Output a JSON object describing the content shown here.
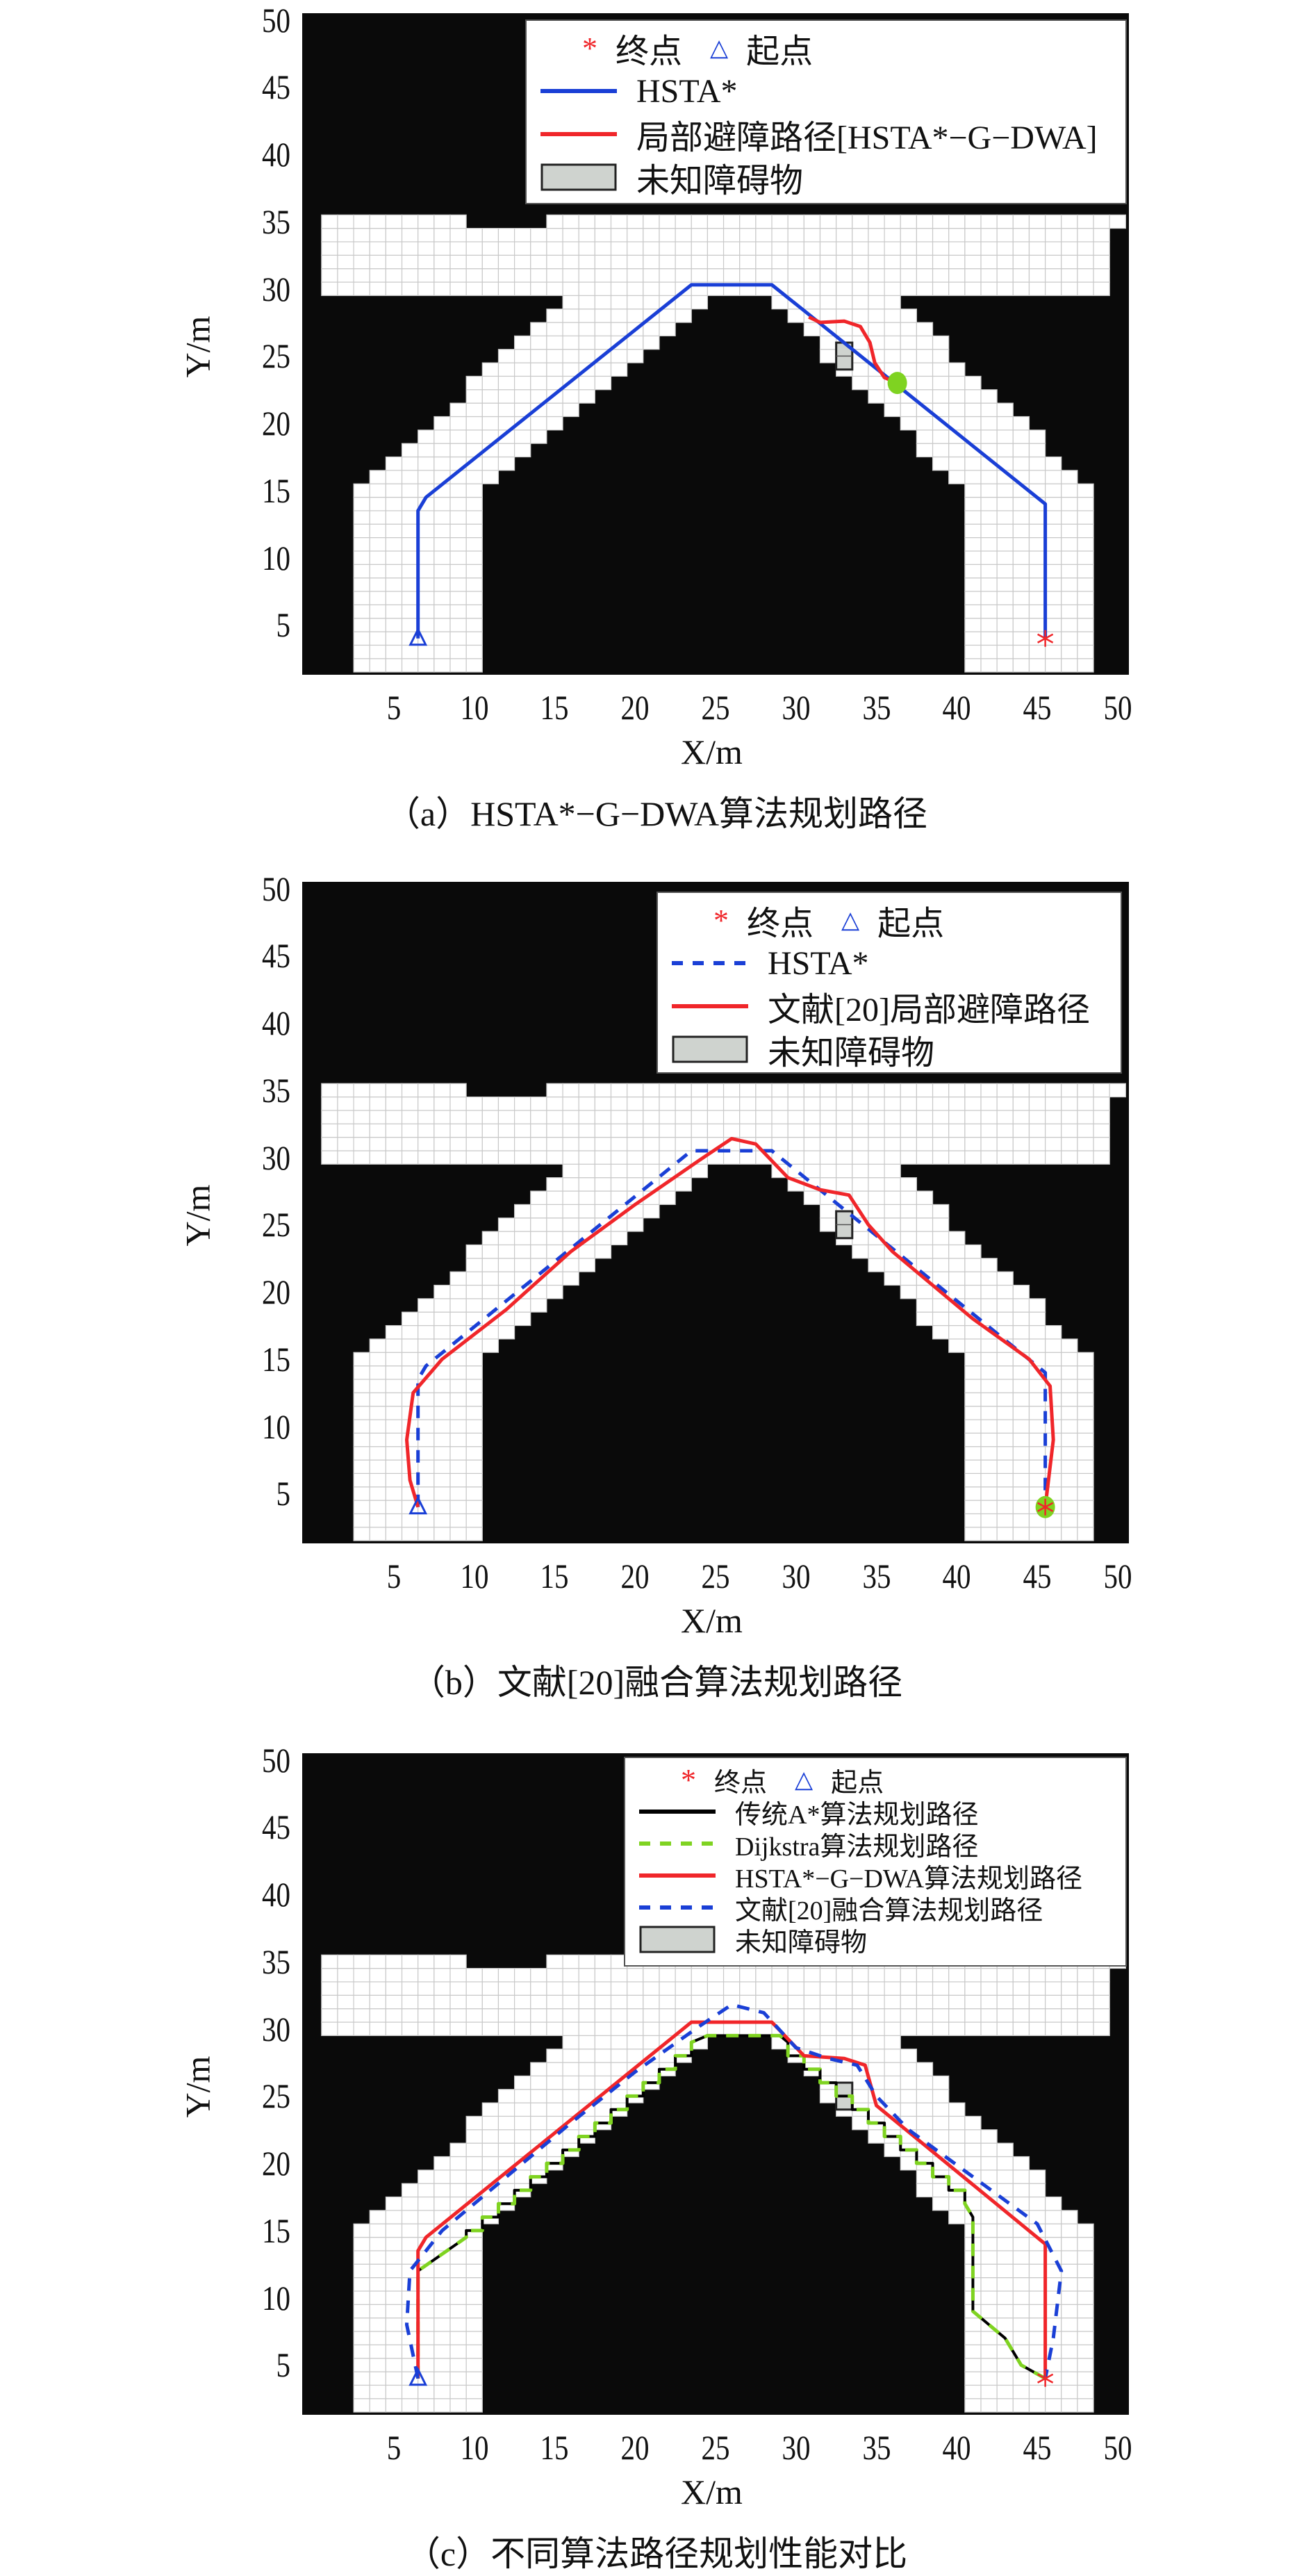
{
  "colors": {
    "obstacle_area": "#0a0a0a",
    "free_cell": "#ffffff",
    "grid_line": "#c9c9c9",
    "hsta": "#1a3fd6",
    "local": "#f0262a",
    "dijkstra": "#7fd321",
    "astar": "#000000",
    "unknown_obstacle": "#cfd3cf",
    "start": "#1a3fd6",
    "goal": "#f0262a"
  },
  "chart_data": [
    {
      "type": "line",
      "caption": "（a）HSTA*−G−DWA算法规划路径",
      "xlabel": "X/m",
      "ylabel": "Y/m",
      "xlim": [
        -0.7,
        50.7
      ],
      "ylim": [
        1.3,
        50.5
      ],
      "xticks": [
        "5",
        "10",
        "15",
        "20",
        "25",
        "30",
        "35",
        "40",
        "45",
        "50"
      ],
      "yticks": [
        "5",
        "10",
        "15",
        "20",
        "25",
        "30",
        "35",
        "40",
        "45",
        "50"
      ],
      "grid": true,
      "legend_placement": "top-right",
      "legend": [
        {
          "kind": "markers",
          "goal": "终点",
          "start": "起点"
        },
        {
          "kind": "line",
          "label": "HSTA*",
          "color": "#1a3fd6",
          "dash": false
        },
        {
          "kind": "line",
          "label": "局部避障路径[HSTA*−G−DWA]",
          "color": "#f0262a",
          "dash": false
        },
        {
          "kind": "box",
          "label": "未知障碍物"
        }
      ],
      "start": [
        6.5,
        4
      ],
      "goal": [
        45.5,
        4
      ],
      "unknown_obstacle": {
        "x": [
          32.5,
          33.5
        ],
        "y": [
          24,
          26
        ]
      },
      "robot_marker": [
        36.3,
        23
      ],
      "series": [
        {
          "name": "HSTA*",
          "color": "#1a3fd6",
          "dash": false,
          "points": [
            [
              6.5,
              4
            ],
            [
              6.5,
              13.5
            ],
            [
              7,
              14.5
            ],
            [
              23.5,
              30.3
            ],
            [
              28.5,
              30.3
            ],
            [
              45.5,
              14
            ],
            [
              45.5,
              4
            ]
          ]
        },
        {
          "name": "局部避障路径[HSTA*−G−DWA]",
          "color": "#f0262a",
          "dash": false,
          "points": [
            [
              30.8,
              27.9
            ],
            [
              31.5,
              27.5
            ],
            [
              33,
              27.6
            ],
            [
              34,
              27.2
            ],
            [
              34.6,
              26
            ],
            [
              34.9,
              24.5
            ],
            [
              35.5,
              23.4
            ],
            [
              36.3,
              23
            ]
          ]
        }
      ]
    },
    {
      "type": "line",
      "caption": "（b）文献[20]融合算法规划路径",
      "xlabel": "X/m",
      "ylabel": "Y/m",
      "xlim": [
        -0.7,
        50.7
      ],
      "ylim": [
        1.3,
        50.5
      ],
      "xticks": [
        "5",
        "10",
        "15",
        "20",
        "25",
        "30",
        "35",
        "40",
        "45",
        "50"
      ],
      "yticks": [
        "5",
        "10",
        "15",
        "20",
        "25",
        "30",
        "35",
        "40",
        "45",
        "50"
      ],
      "grid": true,
      "legend_placement": "top-right",
      "legend": [
        {
          "kind": "markers",
          "goal": "终点",
          "start": "起点"
        },
        {
          "kind": "line",
          "label": "HSTA*",
          "color": "#1a3fd6",
          "dash": true
        },
        {
          "kind": "line",
          "label": "文献[20]局部避障路径",
          "color": "#f0262a",
          "dash": false
        },
        {
          "kind": "box",
          "label": "未知障碍物"
        }
      ],
      "start": [
        6.5,
        4
      ],
      "goal": [
        45.5,
        4
      ],
      "unknown_obstacle": {
        "x": [
          32.5,
          33.5
        ],
        "y": [
          24,
          26
        ]
      },
      "robot_marker": [
        45.5,
        4
      ],
      "series": [
        {
          "name": "HSTA*",
          "color": "#1a3fd6",
          "dash": true,
          "points": [
            [
              6.5,
              4
            ],
            [
              6.5,
              13.5
            ],
            [
              7,
              14.5
            ],
            [
              23.5,
              30.5
            ],
            [
              28.5,
              30.5
            ],
            [
              45.5,
              14
            ],
            [
              45.5,
              4
            ]
          ]
        },
        {
          "name": "文献[20]局部避障路径",
          "color": "#f0262a",
          "dash": false,
          "points": [
            [
              6.5,
              4
            ],
            [
              6,
              6
            ],
            [
              5.8,
              9
            ],
            [
              6.2,
              12.5
            ],
            [
              8,
              15
            ],
            [
              12,
              18.7
            ],
            [
              16,
              23
            ],
            [
              20,
              26.5
            ],
            [
              24,
              29.8
            ],
            [
              26,
              31.4
            ],
            [
              27.5,
              31
            ],
            [
              29.5,
              28.5
            ],
            [
              31.5,
              27.6
            ],
            [
              33.3,
              27.2
            ],
            [
              34.5,
              25
            ],
            [
              36,
              23
            ],
            [
              38.5,
              20.5
            ],
            [
              41,
              18
            ],
            [
              44.5,
              15
            ],
            [
              45.8,
              13
            ],
            [
              46,
              9
            ],
            [
              45.5,
              4
            ]
          ]
        }
      ]
    },
    {
      "type": "line",
      "caption": "（c）不同算法路径规划性能对比",
      "xlabel": "X/m",
      "ylabel": "Y/m",
      "xlim": [
        -0.7,
        50.7
      ],
      "ylim": [
        1.3,
        50.5
      ],
      "xticks": [
        "5",
        "10",
        "15",
        "20",
        "25",
        "30",
        "35",
        "40",
        "45",
        "50"
      ],
      "yticks": [
        "5",
        "10",
        "15",
        "20",
        "25",
        "30",
        "35",
        "40",
        "45",
        "50"
      ],
      "grid": true,
      "legend_placement": "top-right",
      "legend": [
        {
          "kind": "markers",
          "goal": "终点",
          "start": "起点"
        },
        {
          "kind": "line",
          "label": "传统A*算法规划路径",
          "color": "#000000",
          "dash": false
        },
        {
          "kind": "line",
          "label": "Dijkstra算法规划路径",
          "color": "#7fd321",
          "dash": true
        },
        {
          "kind": "line",
          "label": "HSTA*−G−DWA算法规划路径",
          "color": "#f0262a",
          "dash": false
        },
        {
          "kind": "line",
          "label": "文献[20]融合算法规划路径",
          "color": "#1a3fd6",
          "dash": true
        },
        {
          "kind": "box",
          "label": "未知障碍物"
        }
      ],
      "start": [
        6.5,
        4
      ],
      "goal": [
        45.5,
        4
      ],
      "unknown_obstacle": {
        "x": [
          32.5,
          33.5
        ],
        "y": [
          24,
          26
        ]
      },
      "series": [
        {
          "name": "传统A*算法规划路径",
          "color": "#000000",
          "dash": false,
          "points": [
            [
              6.5,
              4
            ],
            [
              6.5,
              12
            ],
            [
              9.5,
              14.5
            ],
            [
              9.5,
              15
            ],
            [
              10.5,
              15
            ],
            [
              10.5,
              16
            ],
            [
              11.5,
              16
            ],
            [
              11.5,
              17
            ],
            [
              12.5,
              17
            ],
            [
              12.5,
              18
            ],
            [
              13.5,
              18
            ],
            [
              13.5,
              19
            ],
            [
              14.5,
              19
            ],
            [
              14.5,
              20
            ],
            [
              15.5,
              20
            ],
            [
              15.5,
              21
            ],
            [
              16.5,
              21
            ],
            [
              16.5,
              22
            ],
            [
              17.5,
              22
            ],
            [
              17.5,
              23
            ],
            [
              18.5,
              23
            ],
            [
              18.5,
              24
            ],
            [
              19.5,
              24
            ],
            [
              19.5,
              25
            ],
            [
              20.5,
              25
            ],
            [
              20.5,
              26
            ],
            [
              21.5,
              26
            ],
            [
              21.5,
              27
            ],
            [
              22.5,
              27
            ],
            [
              22.5,
              28
            ],
            [
              23.5,
              28
            ],
            [
              23.5,
              29
            ],
            [
              24.5,
              29.5
            ],
            [
              29,
              29.5
            ],
            [
              29.5,
              29
            ],
            [
              29.5,
              28
            ],
            [
              30.5,
              28
            ],
            [
              30.5,
              27
            ],
            [
              31.5,
              27
            ],
            [
              31.5,
              26
            ],
            [
              32.5,
              26
            ],
            [
              32.5,
              25
            ],
            [
              33.5,
              25
            ],
            [
              33.5,
              24
            ],
            [
              34.5,
              24
            ],
            [
              34.5,
              23
            ],
            [
              35.5,
              23
            ],
            [
              35.5,
              22
            ],
            [
              36.5,
              22
            ],
            [
              36.5,
              21
            ],
            [
              37.5,
              21
            ],
            [
              37.5,
              20
            ],
            [
              38.5,
              20
            ],
            [
              38.5,
              19
            ],
            [
              39.5,
              19
            ],
            [
              39.5,
              18
            ],
            [
              40.5,
              18
            ],
            [
              40.5,
              17
            ],
            [
              41,
              16
            ],
            [
              41,
              9
            ],
            [
              43,
              7
            ],
            [
              43.5,
              6
            ],
            [
              44,
              5
            ],
            [
              45.5,
              4
            ]
          ]
        },
        {
          "name": "Dijkstra算法规划路径",
          "color": "#7fd321",
          "dash": true,
          "points": [
            [
              6.5,
              4
            ],
            [
              6.5,
              12
            ],
            [
              9.5,
              14.5
            ],
            [
              9.5,
              15
            ],
            [
              10.5,
              15
            ],
            [
              10.5,
              16
            ],
            [
              11.5,
              16
            ],
            [
              11.5,
              17
            ],
            [
              12.5,
              17
            ],
            [
              12.5,
              18
            ],
            [
              13.5,
              18
            ],
            [
              13.5,
              19
            ],
            [
              14.5,
              19
            ],
            [
              14.5,
              20
            ],
            [
              15.5,
              20
            ],
            [
              15.5,
              21
            ],
            [
              16.5,
              21
            ],
            [
              16.5,
              22
            ],
            [
              17.5,
              22
            ],
            [
              17.5,
              23
            ],
            [
              18.5,
              23
            ],
            [
              18.5,
              24
            ],
            [
              19.5,
              24
            ],
            [
              19.5,
              25
            ],
            [
              20.5,
              25
            ],
            [
              20.5,
              26
            ],
            [
              21.5,
              26
            ],
            [
              21.5,
              27
            ],
            [
              22.5,
              27
            ],
            [
              22.5,
              28
            ],
            [
              23.5,
              28
            ],
            [
              23.5,
              29
            ],
            [
              24.5,
              29.5
            ],
            [
              29,
              29.5
            ],
            [
              29.5,
              29
            ],
            [
              29.5,
              28
            ],
            [
              30.5,
              28
            ],
            [
              30.5,
              27
            ],
            [
              31.5,
              27
            ],
            [
              31.5,
              26
            ],
            [
              32.5,
              26
            ],
            [
              32.5,
              25
            ],
            [
              33.5,
              25
            ],
            [
              33.5,
              24
            ],
            [
              34.5,
              24
            ],
            [
              34.5,
              23
            ],
            [
              35.5,
              23
            ],
            [
              35.5,
              22
            ],
            [
              36.5,
              22
            ],
            [
              36.5,
              21
            ],
            [
              37.5,
              21
            ],
            [
              37.5,
              20
            ],
            [
              38.5,
              20
            ],
            [
              38.5,
              19
            ],
            [
              39.5,
              19
            ],
            [
              39.5,
              18
            ],
            [
              40.5,
              18
            ],
            [
              40.5,
              17
            ],
            [
              41,
              16
            ],
            [
              41,
              9
            ],
            [
              43,
              7
            ],
            [
              43.5,
              6
            ],
            [
              44,
              5
            ],
            [
              45.5,
              4
            ]
          ]
        },
        {
          "name": "HSTA*−G−DWA算法规划路径",
          "color": "#f0262a",
          "dash": false,
          "points": [
            [
              6.5,
              4
            ],
            [
              6.5,
              13.5
            ],
            [
              7,
              14.5
            ],
            [
              23.5,
              30.5
            ],
            [
              28.5,
              30.5
            ],
            [
              30.5,
              28
            ],
            [
              33,
              27.8
            ],
            [
              34.3,
              27.3
            ],
            [
              35,
              24.3
            ],
            [
              45.5,
              14
            ],
            [
              45.5,
              4
            ]
          ]
        },
        {
          "name": "文献[20]融合算法规划路径",
          "color": "#1a3fd6",
          "dash": true,
          "points": [
            [
              6.5,
              4
            ],
            [
              5.8,
              8
            ],
            [
              6,
              12
            ],
            [
              8,
              15
            ],
            [
              12,
              19
            ],
            [
              16,
              23
            ],
            [
              20,
              26.8
            ],
            [
              24,
              30.2
            ],
            [
              26,
              31.8
            ],
            [
              28,
              31.2
            ],
            [
              30,
              28.6
            ],
            [
              32,
              27.8
            ],
            [
              33.8,
              27.3
            ],
            [
              35,
              25
            ],
            [
              37,
              22.5
            ],
            [
              41,
              19
            ],
            [
              45,
              15.5
            ],
            [
              46.5,
              12
            ],
            [
              46,
              7
            ],
            [
              45.5,
              4
            ]
          ]
        }
      ]
    }
  ]
}
